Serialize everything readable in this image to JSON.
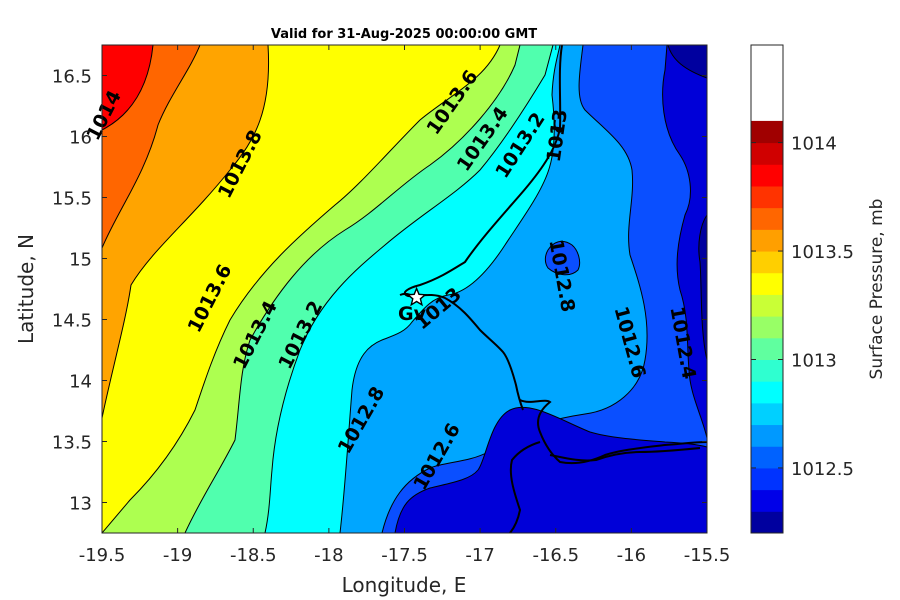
{
  "chart_data": {
    "type": "contour",
    "title": "Valid for 31-Aug-2025 00:00:00 GMT",
    "xlabel": "Longitude, E",
    "ylabel": "Latitude, N",
    "xlim": [
      -19.5,
      -15.5
    ],
    "ylim": [
      12.75,
      16.75
    ],
    "x_ticks": [
      "-19.5",
      "-19",
      "-18.5",
      "-18",
      "-17.5",
      "-17",
      "-16.5",
      "-16",
      "-15.5"
    ],
    "y_ticks": [
      "16.5",
      "16",
      "15.5",
      "15",
      "14.5",
      "14",
      "13.5",
      "13"
    ],
    "colorbar": {
      "label": "Surface Pressure, mb",
      "range": [
        1012.2,
        1014.45
      ],
      "tick_labels": [
        "1014",
        "1013.5",
        "1013",
        "1012.5"
      ],
      "tick_values": [
        1014,
        1013.5,
        1013,
        1012.5
      ],
      "levels": [
        1012.2,
        1012.3,
        1012.4,
        1012.5,
        1012.6,
        1012.7,
        1012.8,
        1012.9,
        1013.0,
        1013.1,
        1013.2,
        1013.3,
        1013.4,
        1013.5,
        1013.6,
        1013.7,
        1013.8,
        1013.9,
        1014.0,
        1014.1,
        1014.2,
        1014.3,
        1014.45
      ],
      "colors": [
        "#00009f",
        "#0000e8",
        "#0033ff",
        "#0062ff",
        "#0099ff",
        "#00d0ff",
        "#00ffff",
        "#2fffd0",
        "#60ff9f",
        "#98ff66",
        "#c9ff36",
        "#ffff00",
        "#ffcf00",
        "#ff9f00",
        "#ff6600",
        "#ff3300",
        "#ff0000",
        "#d00000",
        "#a00000"
      ]
    },
    "contour_labels": [
      {
        "text": "1014",
        "lon": -19.45,
        "lat": 16.15
      },
      {
        "text": "1013.8",
        "lon": -18.55,
        "lat": 15.75
      },
      {
        "text": "1013.6",
        "lon": -17.15,
        "lat": 16.25
      },
      {
        "text": "1013.4",
        "lon": -16.95,
        "lat": 15.95
      },
      {
        "text": "1013.2",
        "lon": -16.7,
        "lat": 15.9
      },
      {
        "text": "1013",
        "lon": -16.45,
        "lat": 16.0
      },
      {
        "text": "1013.6",
        "lon": -18.75,
        "lat": 14.65
      },
      {
        "text": "1013.4",
        "lon": -18.45,
        "lat": 14.35
      },
      {
        "text": "1013.2",
        "lon": -18.15,
        "lat": 14.35
      },
      {
        "text": "1013",
        "lon": -17.25,
        "lat": 14.55
      },
      {
        "text": "1012.8",
        "lon": -16.5,
        "lat": 14.85
      },
      {
        "text": "1012.6",
        "lon": -16.05,
        "lat": 14.3
      },
      {
        "text": "1012.4",
        "lon": -15.7,
        "lat": 14.3
      },
      {
        "text": "1012.8",
        "lon": -17.75,
        "lat": 13.65
      },
      {
        "text": "1012.6",
        "lon": -17.25,
        "lat": 13.35
      }
    ],
    "stations": [
      {
        "name": "Gv",
        "lon": -17.42,
        "lat": 14.68,
        "marker": "star"
      }
    ]
  }
}
